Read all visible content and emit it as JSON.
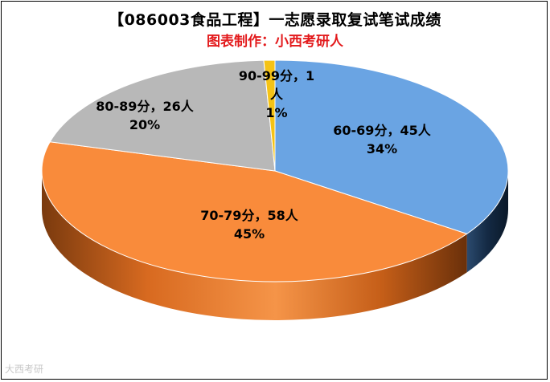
{
  "title": "【086003食品工程】一志愿录取复试笔试成绩",
  "subtitle": "图表制作：小西考研人",
  "colors": {
    "subtitle": "#e31a1c",
    "60-69": "#6aa4e3",
    "70-79": "#f98b3b",
    "80-89": "#b8b8b8",
    "90-99": "#f5c316"
  },
  "chart_data": {
    "type": "pie",
    "style": "3d",
    "title": "【086003食品工程】一志愿录取复试笔试成绩",
    "subtitle": "图表制作：小西考研人",
    "slices": [
      {
        "category": "60-69分",
        "count": 45,
        "percent": "34%",
        "label_line1": "60-69分，45人",
        "label_line2": "34%"
      },
      {
        "category": "70-79分",
        "count": 58,
        "percent": "45%",
        "label_line1": "70-79分，58人",
        "label_line2": "45%"
      },
      {
        "category": "80-89分",
        "count": 26,
        "percent": "20%",
        "label_line1": "80-89分，26人",
        "label_line2": "20%"
      },
      {
        "category": "90-99分",
        "count": 1,
        "percent": "1%",
        "label_line1": "90-99分，1",
        "label_line1b": "人",
        "label_line2": "1%"
      }
    ],
    "legend": "none"
  },
  "watermark": "大西考研"
}
